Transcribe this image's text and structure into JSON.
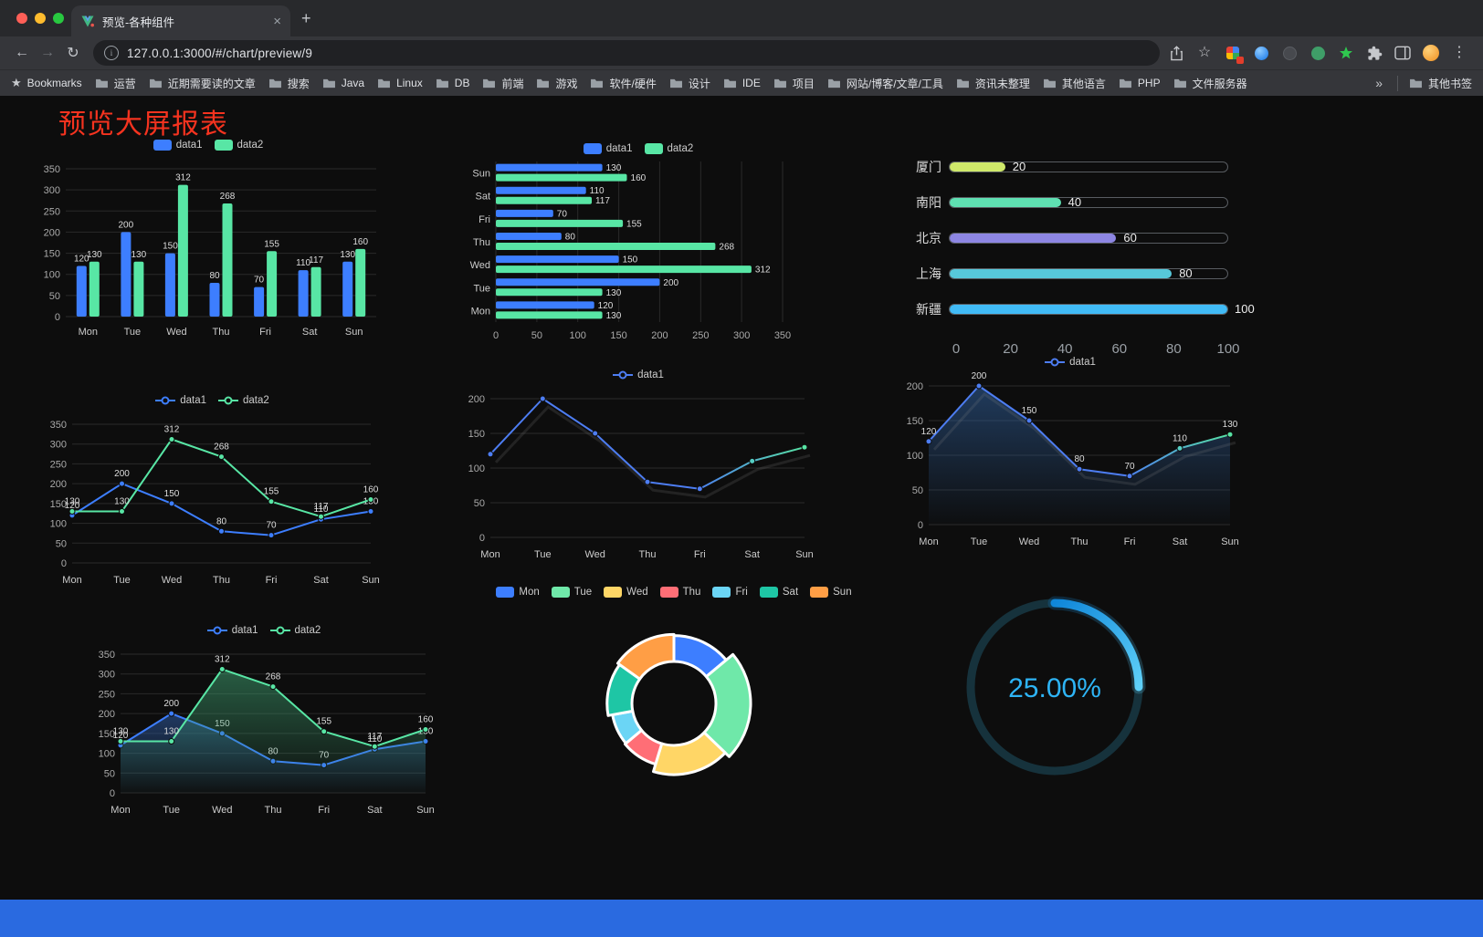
{
  "browser": {
    "tab_title": "预览-各种组件",
    "url": "127.0.0.1:3000/#/chart/preview/9",
    "icons": {
      "back": "←",
      "forward": "→",
      "reload": "↻",
      "info": "i",
      "new_tab": "+",
      "close_tab": "×",
      "bookmark_star": "☆",
      "bookmarks_star": "★",
      "menu_dots": "⋮",
      "overflow_chevron": "»"
    },
    "bookmarks_label": "Bookmarks",
    "bookmarks": [
      "运营",
      "近期需要读的文章",
      "搜索",
      "Java",
      "Linux",
      "DB",
      "前端",
      "游戏",
      "软件/硬件",
      "设计",
      "IDE",
      "项目",
      "网站/博客/文章/工具",
      "资讯未整理",
      "其他语言",
      "PHP",
      "文件服务器"
    ],
    "other_bookmarks_label": "其他书签"
  },
  "page": {
    "title": "预览大屏报表",
    "title_color": "#f5331f",
    "background": "#0d0d0d",
    "footer_color": "#2a6ae0"
  },
  "chart_data": [
    {
      "type": "bar",
      "orientation": "vertical",
      "categories": [
        "Mon",
        "Tue",
        "Wed",
        "Thu",
        "Fri",
        "Sat",
        "Sun"
      ],
      "series": [
        {
          "name": "data1",
          "color": "#3D7EFF",
          "values": [
            120,
            200,
            150,
            80,
            70,
            110,
            130
          ]
        },
        {
          "name": "data2",
          "color": "#58E6A5",
          "values": [
            130,
            130,
            312,
            268,
            155,
            117,
            160
          ]
        }
      ],
      "ylim": [
        0,
        350
      ],
      "yticks": [
        0,
        50,
        100,
        150,
        200,
        250,
        300,
        350
      ],
      "labels": true,
      "legend": "rect",
      "grid": true
    },
    {
      "type": "bar",
      "orientation": "horizontal",
      "categories": [
        "Mon",
        "Tue",
        "Wed",
        "Thu",
        "Fri",
        "Sat",
        "Sun"
      ],
      "series": [
        {
          "name": "data1",
          "color": "#3D7EFF",
          "values": [
            120,
            200,
            150,
            80,
            70,
            110,
            130
          ]
        },
        {
          "name": "data2",
          "color": "#58E6A5",
          "values": [
            130,
            130,
            312,
            268,
            155,
            117,
            160
          ]
        }
      ],
      "xlim": [
        0,
        350
      ],
      "xticks": [
        0,
        50,
        100,
        150,
        200,
        250,
        300,
        350
      ],
      "labels": true,
      "legend": "rect",
      "grid": true
    },
    {
      "type": "bar",
      "orientation": "progress",
      "categories": [
        "厦门",
        "南阳",
        "北京",
        "上海",
        "新疆"
      ],
      "values": [
        20,
        40,
        60,
        80,
        100
      ],
      "colors": [
        "#cfe96a",
        "#5fe0b2",
        "#8d86e3",
        "#57c8da",
        "#41bbf6"
      ],
      "xlim": [
        0,
        100
      ],
      "xticks": [
        0,
        20,
        40,
        60,
        80,
        100
      ]
    },
    {
      "type": "line",
      "categories": [
        "Mon",
        "Tue",
        "Wed",
        "Thu",
        "Fri",
        "Sat",
        "Sun"
      ],
      "series": [
        {
          "name": "data1",
          "color": "#3D7EFF",
          "values": [
            120,
            200,
            150,
            80,
            70,
            110,
            130
          ]
        },
        {
          "name": "data2",
          "color": "#58E6A5",
          "values": [
            130,
            130,
            312,
            268,
            155,
            117,
            160
          ]
        }
      ],
      "ylim": [
        0,
        350
      ],
      "yticks": [
        0,
        50,
        100,
        150,
        200,
        250,
        300,
        350
      ],
      "labels": true,
      "legend": "line",
      "grid": true
    },
    {
      "type": "line",
      "categories": [
        "Mon",
        "Tue",
        "Wed",
        "Thu",
        "Fri",
        "Sat",
        "Sun"
      ],
      "series": [
        {
          "name": "data1",
          "color": "#4D7DF2",
          "gradient": [
            "#4D7DF2",
            "#57E3A3"
          ],
          "values": [
            120,
            200,
            150,
            80,
            70,
            110,
            130
          ]
        }
      ],
      "ylim": [
        0,
        200
      ],
      "yticks": [
        0,
        50,
        100,
        150,
        200
      ],
      "labels": false,
      "legend": "line",
      "shadow": true,
      "grid": true
    },
    {
      "type": "line",
      "categories": [
        "Mon",
        "Tue",
        "Wed",
        "Thu",
        "Fri",
        "Sat",
        "Sun"
      ],
      "series": [
        {
          "name": "data1",
          "color": "#4D7DF2",
          "gradient": [
            "#4D7DF2",
            "#57E3A3"
          ],
          "area": "#30619F",
          "values": [
            120,
            200,
            150,
            80,
            70,
            110,
            130
          ]
        }
      ],
      "ylim": [
        0,
        200
      ],
      "yticks": [
        0,
        50,
        100,
        150,
        200
      ],
      "labels": true,
      "legend": "line",
      "shadow": true,
      "grid": true
    },
    {
      "type": "line",
      "categories": [
        "Mon",
        "Tue",
        "Wed",
        "Thu",
        "Fri",
        "Sat",
        "Sun"
      ],
      "series": [
        {
          "name": "data1",
          "color": "#3D7EFF",
          "area": "#2F5EA8",
          "values": [
            120,
            200,
            150,
            80,
            70,
            110,
            130
          ]
        },
        {
          "name": "data2",
          "color": "#58E6A5",
          "area": "#3E9E6F",
          "values": [
            130,
            130,
            312,
            268,
            155,
            117,
            160
          ]
        }
      ],
      "ylim": [
        0,
        350
      ],
      "yticks": [
        0,
        50,
        100,
        150,
        200,
        250,
        300,
        350
      ],
      "labels": true,
      "legend": "line",
      "grid": true
    },
    {
      "type": "pie",
      "categories": [
        "Mon",
        "Tue",
        "Wed",
        "Thu",
        "Fri",
        "Sat",
        "Sun"
      ],
      "values": [
        120,
        200,
        150,
        80,
        70,
        110,
        130
      ],
      "colors": [
        "#3D7EFF",
        "#6FE8A9",
        "#FFD666",
        "#FF6E76",
        "#6BD5F5",
        "#1EC6A5",
        "#FF9E45"
      ],
      "legend": "rect",
      "donut": true,
      "border_color": "#ffffff"
    },
    {
      "type": "gauge",
      "value": 25,
      "label": "25.00%",
      "color": "#22A7F0",
      "track_color": "#16323C",
      "text_color": "#2EB4F5"
    }
  ]
}
